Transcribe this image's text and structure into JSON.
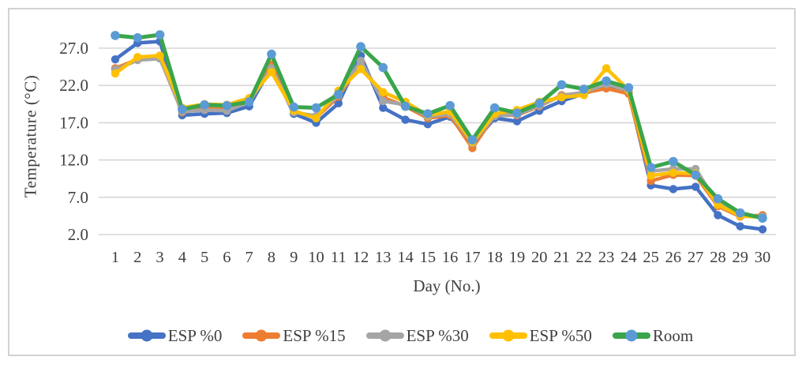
{
  "chart_data": {
    "type": "line",
    "title": "",
    "xlabel": "Day (No.)",
    "ylabel": "Temperature (°C)",
    "x": [
      1,
      2,
      3,
      4,
      5,
      6,
      7,
      8,
      9,
      10,
      11,
      12,
      13,
      14,
      15,
      16,
      17,
      18,
      19,
      20,
      21,
      22,
      23,
      24,
      25,
      26,
      27,
      28,
      29,
      30
    ],
    "y_tick_values": [
      2,
      7,
      12,
      17,
      22,
      27
    ],
    "y_tick_labels": [
      "2.0",
      "7.0",
      "12.0",
      "17.0",
      "22.0",
      "27.0"
    ],
    "ylim": [
      2,
      29.6
    ],
    "grid": "horizontal",
    "legend_position": "bottom",
    "marker": "circle",
    "series": [
      {
        "name": "ESP %0",
        "color": "#4472C4",
        "marker_color": "#4472C4",
        "values": [
          25.5,
          27.7,
          27.9,
          18.0,
          18.2,
          18.3,
          19.2,
          24.5,
          18.2,
          17.0,
          19.6,
          26.0,
          19.0,
          17.4,
          16.8,
          17.8,
          14.1,
          17.6,
          17.2,
          18.6,
          19.9,
          20.9,
          21.9,
          21.1,
          8.6,
          8.1,
          8.4,
          4.6,
          3.1,
          2.7
        ]
      },
      {
        "name": "ESP %15",
        "color": "#ED7D31",
        "marker_color": "#ED7D31",
        "values": [
          24.3,
          25.5,
          25.7,
          18.4,
          18.9,
          18.8,
          19.9,
          24.8,
          18.5,
          17.7,
          20.5,
          25.0,
          20.4,
          19.2,
          17.6,
          18.0,
          13.6,
          18.0,
          18.0,
          19.2,
          20.7,
          21.0,
          21.6,
          20.9,
          9.2,
          10.0,
          9.9,
          5.8,
          4.4,
          4.6
        ]
      },
      {
        "name": "ESP %30",
        "color": "#A5A5A5",
        "marker_color": "#A5A5A5",
        "values": [
          24.1,
          25.4,
          25.6,
          18.5,
          18.7,
          18.6,
          19.8,
          24.3,
          18.4,
          17.9,
          20.7,
          25.3,
          19.9,
          19.4,
          17.8,
          18.2,
          14.3,
          17.9,
          18.1,
          19.3,
          20.6,
          21.1,
          22.2,
          21.3,
          10.5,
          10.8,
          10.8,
          6.1,
          4.6,
          4.4
        ]
      },
      {
        "name": "ESP %50",
        "color": "#FFC000",
        "marker_color": "#FFC000",
        "values": [
          23.6,
          25.8,
          26.0,
          19.0,
          19.5,
          19.4,
          20.3,
          23.8,
          18.6,
          17.6,
          21.3,
          24.2,
          21.1,
          19.8,
          18.0,
          18.5,
          14.4,
          18.2,
          18.7,
          19.8,
          20.4,
          20.7,
          24.3,
          21.4,
          9.9,
          10.3,
          10.2,
          6.0,
          4.5,
          4.3
        ]
      },
      {
        "name": "Room",
        "color": "#3AA54A",
        "marker_color": "#5B9BD5",
        "values": [
          28.7,
          28.4,
          28.8,
          18.8,
          19.4,
          19.3,
          19.8,
          26.2,
          19.1,
          19.0,
          20.8,
          27.2,
          24.4,
          19.2,
          18.2,
          19.3,
          14.7,
          19.0,
          18.3,
          19.6,
          22.1,
          21.5,
          22.6,
          21.7,
          11.0,
          11.8,
          10.0,
          6.8,
          4.9,
          4.2
        ]
      }
    ],
    "colors": {
      "gridline": "#d6d6d6",
      "axis_text": "#3f3f3f",
      "figure_border": "#d2d2d2"
    }
  }
}
